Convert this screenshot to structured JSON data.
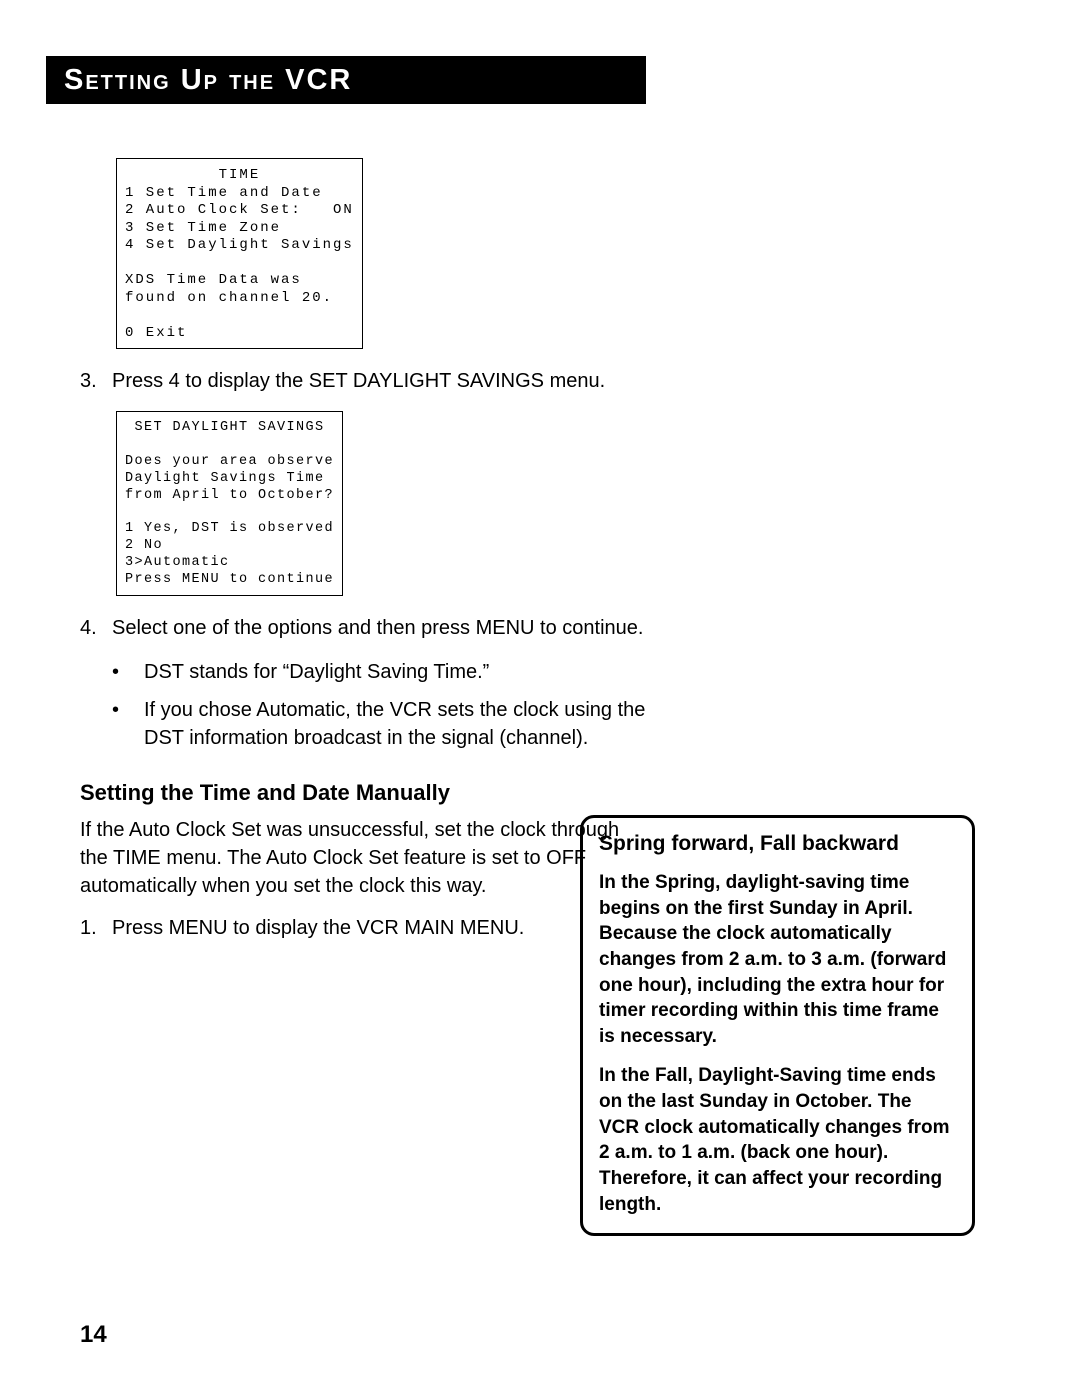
{
  "header": {
    "title": "Setting Up the VCR"
  },
  "osd1": {
    "title": "TIME",
    "l1": "1 Set Time and Date",
    "l2": "2 Auto Clock Set:   ON",
    "l3": "3 Set Time Zone",
    "l4": "4 Set Daylight Savings",
    "l5": "XDS Time Data was",
    "l6": "found on channel 20.",
    "l7": "0 Exit"
  },
  "step3": {
    "num": "3.",
    "text": "Press 4 to display the SET DAYLIGHT SAVINGS menu."
  },
  "osd2": {
    "title": "SET DAYLIGHT SAVINGS",
    "l1": "Does your area observe",
    "l2": "Daylight Savings Time",
    "l3": "from April to October?",
    "l4": "1 Yes, DST is observed",
    "l5": "2 No",
    "l6": "3>Automatic",
    "l7": "Press MENU to continue"
  },
  "step4": {
    "num": "4.",
    "text": "Select one of the options and then press MENU to continue."
  },
  "bul1": "DST stands for “Daylight Saving Time.”",
  "bul2": "If you chose Automatic, the VCR sets the clock using the DST information broadcast in the signal (channel).",
  "subhead1": "Setting the Time and Date Manually",
  "para1": "If the Auto Clock Set was unsuccessful, set the clock through the TIME menu. The Auto Clock Set feature is set to OFF automatically when you set the clock this way.",
  "step1b": {
    "num": "1.",
    "text": "Press MENU to display the VCR MAIN MENU."
  },
  "sidebar": {
    "title": "Spring forward, Fall backward",
    "p1": "In the Spring, daylight-saving time begins on the first Sunday in April. Because the clock automatically changes from 2 a.m. to 3 a.m. (forward one hour), including the extra hour for timer recording within this time frame is necessary.",
    "p2": "In the Fall, Daylight-Saving time ends on the last Sunday in October.  The VCR clock automatically changes from 2 a.m. to 1 a.m. (back one hour). Therefore, it can affect your recording length."
  },
  "pagenum": "14"
}
